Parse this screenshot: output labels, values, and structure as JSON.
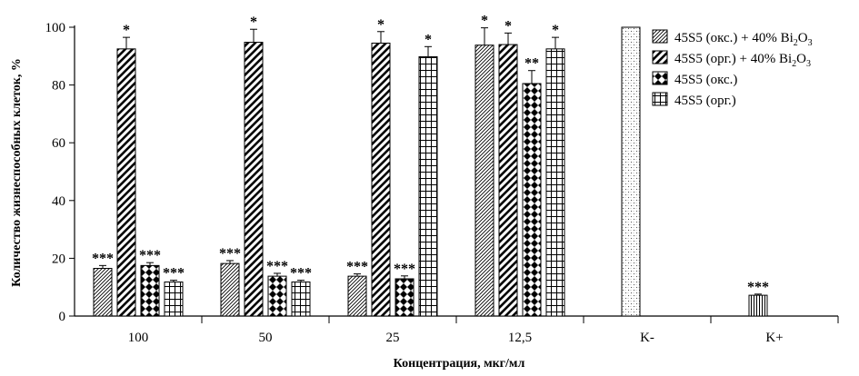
{
  "chart_data": {
    "type": "bar",
    "title": "",
    "xlabel": "Концентрация, мкг/мл",
    "ylabel": "Количество жизнеспособных клеток, %",
    "ylim": [
      0,
      100
    ],
    "yticks": [
      0,
      20,
      40,
      60,
      80,
      100
    ],
    "grid": false,
    "legend_position": "top-right",
    "categories": [
      "100",
      "50",
      "25",
      "12,5",
      "K-",
      "K+"
    ],
    "series": [
      {
        "name": "45S5 (окс.) + 40% Bi2O3",
        "legend_parts": {
          "base": "45S5 (окс.) + 40% Bi",
          "sub1": "2",
          "mid": "O",
          "sub2": "3"
        },
        "pattern": "diag-thin",
        "values": [
          16.5,
          18.2,
          13.8,
          93.8,
          null,
          null
        ],
        "errors": [
          1.0,
          1.0,
          0.8,
          6.0,
          null,
          null
        ],
        "marks": [
          "***",
          "***",
          "***",
          "*",
          null,
          null
        ]
      },
      {
        "name": "45S5 (орг.) + 40% Bi2O3",
        "legend_parts": {
          "base": "45S5 (орг.) + 40% Bi",
          "sub1": "2",
          "mid": "O",
          "sub2": "3"
        },
        "pattern": "diag-thick",
        "values": [
          92.5,
          94.8,
          94.5,
          94.0,
          null,
          null
        ],
        "errors": [
          4.0,
          4.5,
          4.0,
          4.0,
          null,
          null
        ],
        "marks": [
          "*",
          "*",
          "*",
          "*",
          null,
          null
        ]
      },
      {
        "name": "45S5 (окс.)",
        "pattern": "checker",
        "values": [
          17.5,
          13.8,
          12.9,
          80.5,
          null,
          null
        ],
        "errors": [
          1.0,
          1.0,
          1.0,
          4.5,
          null,
          null
        ],
        "marks": [
          "***",
          "***",
          "***",
          "**",
          null,
          null
        ]
      },
      {
        "name": "45S5 (орг.)",
        "pattern": "grid",
        "values": [
          11.8,
          11.8,
          89.8,
          92.5,
          null,
          null
        ],
        "errors": [
          0.6,
          0.6,
          3.5,
          4.0,
          null,
          null
        ],
        "marks": [
          "***",
          "***",
          "*",
          "*",
          null,
          null
        ]
      }
    ],
    "controls": [
      {
        "category": "K-",
        "value": 100,
        "error": 0,
        "pattern": "dots",
        "mark": null
      },
      {
        "category": "K+",
        "value": 7.2,
        "error": 0.4,
        "pattern": "vertical",
        "mark": "***"
      }
    ]
  }
}
